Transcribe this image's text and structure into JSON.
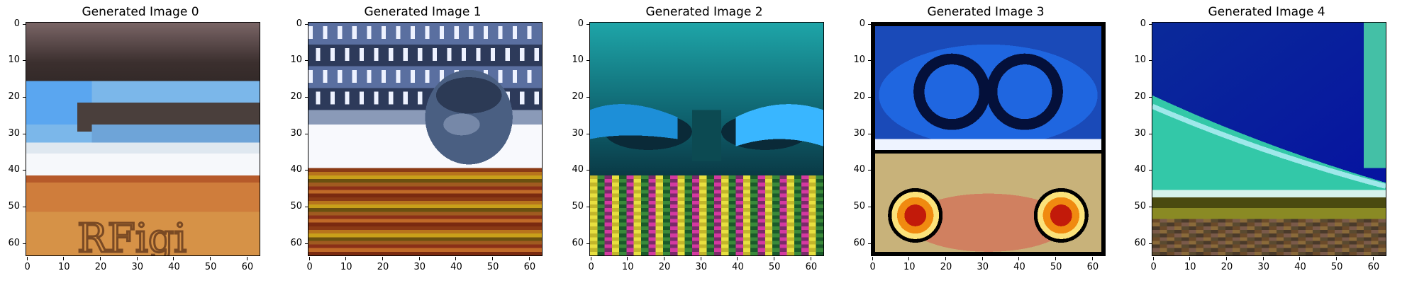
{
  "panels": [
    {
      "title": "Generated Image 0",
      "theme": "desert-sky"
    },
    {
      "title": "Generated Image 1",
      "theme": "keyboard-face"
    },
    {
      "title": "Generated Image 2",
      "theme": "cyan-eyes"
    },
    {
      "title": "Generated Image 3",
      "theme": "goggles-eyes"
    },
    {
      "title": "Generated Image 4",
      "theme": "blue-green"
    }
  ],
  "axes": {
    "y_ticks": [
      "0",
      "10",
      "20",
      "30",
      "40",
      "50",
      "60"
    ],
    "x_ticks": [
      "0",
      "10",
      "20",
      "30",
      "40",
      "50",
      "60"
    ]
  },
  "panel_0_text": "RFigi"
}
